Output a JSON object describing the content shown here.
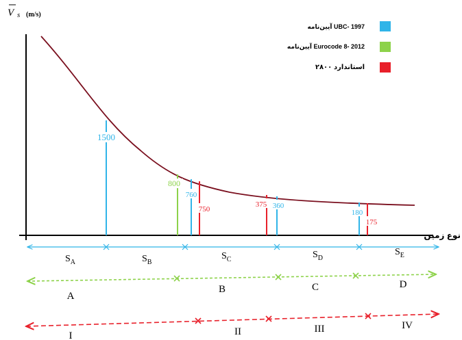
{
  "y_axis": {
    "symbol": "V",
    "subscript": "s",
    "unit": "(m/s)"
  },
  "x_axis": {
    "label": "نوع زمین"
  },
  "legend": [
    {
      "label": "آیین‌نامه UBC- 1997",
      "color": "#2fb4e8"
    },
    {
      "label": "آیین‌نامه Eurocode 8- 2012",
      "color": "#8dd24a"
    },
    {
      "label": "استاندارد ۲۸۰۰",
      "color": "#e8202a"
    }
  ],
  "boundaries": [
    {
      "value": "1500",
      "color": "#2fb4e8"
    },
    {
      "value": "800",
      "color": "#8dd24a"
    },
    {
      "value": "760",
      "color": "#2fb4e8"
    },
    {
      "value": "750",
      "color": "#e8202a"
    },
    {
      "value": "375",
      "color": "#e8202a"
    },
    {
      "value": "360",
      "color": "#2fb4e8"
    },
    {
      "value": "180",
      "color": "#2fb4e8"
    },
    {
      "value": "175",
      "color": "#e8202a"
    }
  ],
  "ubc_classes": [
    {
      "letter": "S",
      "sub": "A"
    },
    {
      "letter": "S",
      "sub": "B"
    },
    {
      "letter": "S",
      "sub": "C"
    },
    {
      "letter": "S",
      "sub": "D"
    },
    {
      "letter": "S",
      "sub": "E"
    }
  ],
  "eurocode_classes": [
    "A",
    "B",
    "C",
    "D"
  ],
  "standard_2800_classes": [
    "I",
    "II",
    "III",
    "IV"
  ],
  "colors": {
    "curve": "#7a0f1e",
    "axis": "#000000",
    "ubc": "#2fb4e8",
    "eurocode": "#8dd24a",
    "standard": "#e8202a"
  }
}
